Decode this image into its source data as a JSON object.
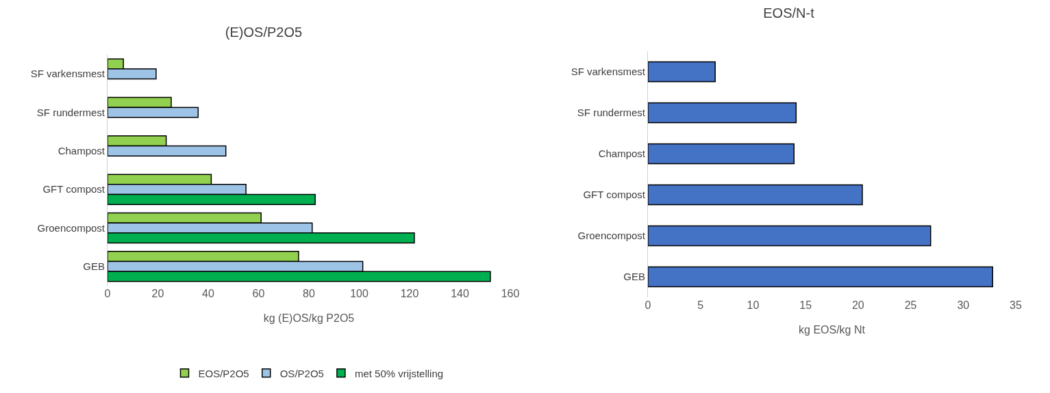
{
  "chart_data": [
    {
      "type": "bar",
      "title": "(E)OS/P2O5",
      "xlabel": "kg (E)OS/kg P2O5",
      "orientation": "horizontal",
      "categories": [
        "SF varkensmest",
        "SF rundermest",
        "Champost",
        "GFT compost",
        "Groencompost",
        "GEB"
      ],
      "xlim": [
        0,
        160
      ],
      "xticks": [
        0,
        20,
        40,
        60,
        80,
        100,
        120,
        140,
        160
      ],
      "grid": false,
      "legend": "bottom",
      "series": [
        {
          "name": "EOS/P2O5",
          "color": "#92d050",
          "values": [
            6.3,
            25.3,
            23.3,
            41.2,
            61.0,
            75.9
          ]
        },
        {
          "name": "OS/P2O5",
          "color": "#9dc3e6",
          "values": [
            19.3,
            36.0,
            47.0,
            55.0,
            81.3,
            101.4
          ]
        },
        {
          "name": "met 50% vrijstelling",
          "color": "#00b050",
          "values": [
            null,
            null,
            null,
            82.5,
            121.9,
            152.1
          ]
        }
      ]
    },
    {
      "type": "bar",
      "title": "EOS/N-t",
      "xlabel": "kg EOS/kg Nt",
      "orientation": "horizontal",
      "categories": [
        "SF varkensmest",
        "SF rundermest",
        "Champost",
        "GFT compost",
        "Groencompost",
        "GEB"
      ],
      "xlim": [
        0,
        35
      ],
      "xticks": [
        0,
        5,
        10,
        15,
        20,
        25,
        30,
        35
      ],
      "grid": false,
      "legend": false,
      "series": [
        {
          "color": "#4472c4",
          "values": [
            6.4,
            14.1,
            13.9,
            20.4,
            26.9,
            32.8
          ]
        }
      ]
    }
  ]
}
